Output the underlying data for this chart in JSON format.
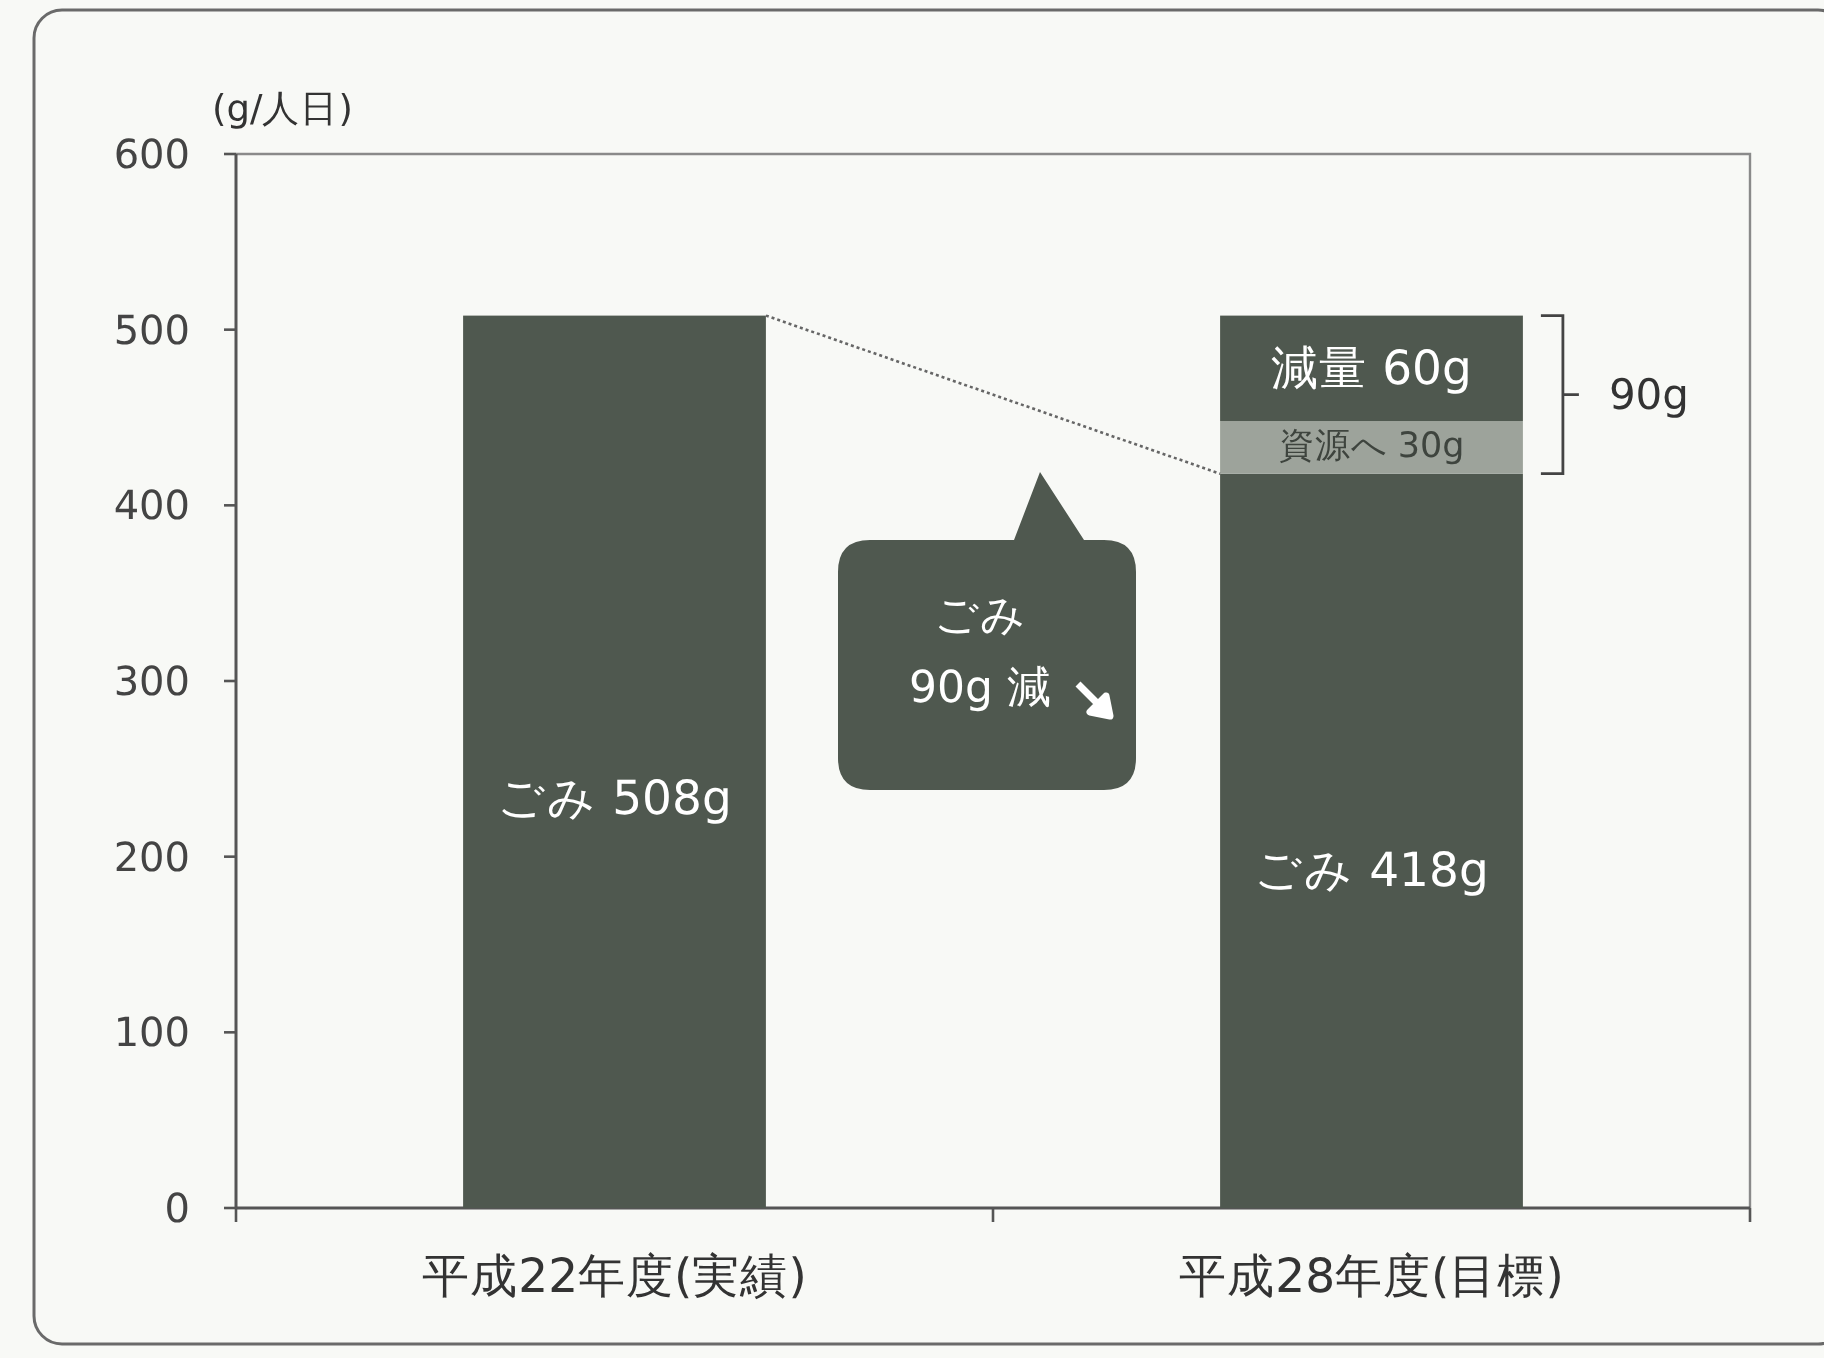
{
  "chart_data": {
    "type": "bar",
    "stacked": true,
    "ylabel": "(g/人日)",
    "categories": [
      "平成22年度(実績)",
      "平成28年度(目標)"
    ],
    "series": [
      {
        "color": "#4f584f",
        "values": [
          508,
          418
        ],
        "value_labels": [
          "ごみ 508g",
          "ごみ 418g"
        ]
      },
      {
        "color": "#9da39b",
        "values": [
          null,
          30
        ],
        "value_labels": [
          null,
          "資源へ 30g"
        ]
      },
      {
        "color": "#4f584f",
        "values": [
          null,
          60
        ],
        "value_labels": [
          null,
          "減量 60g"
        ]
      }
    ],
    "ylim": [
      0,
      600
    ],
    "yticks": [
      0,
      100,
      200,
      300,
      400,
      500,
      600
    ],
    "annotations": [
      "90g",
      "ごみ\n90g 減"
    ]
  }
}
